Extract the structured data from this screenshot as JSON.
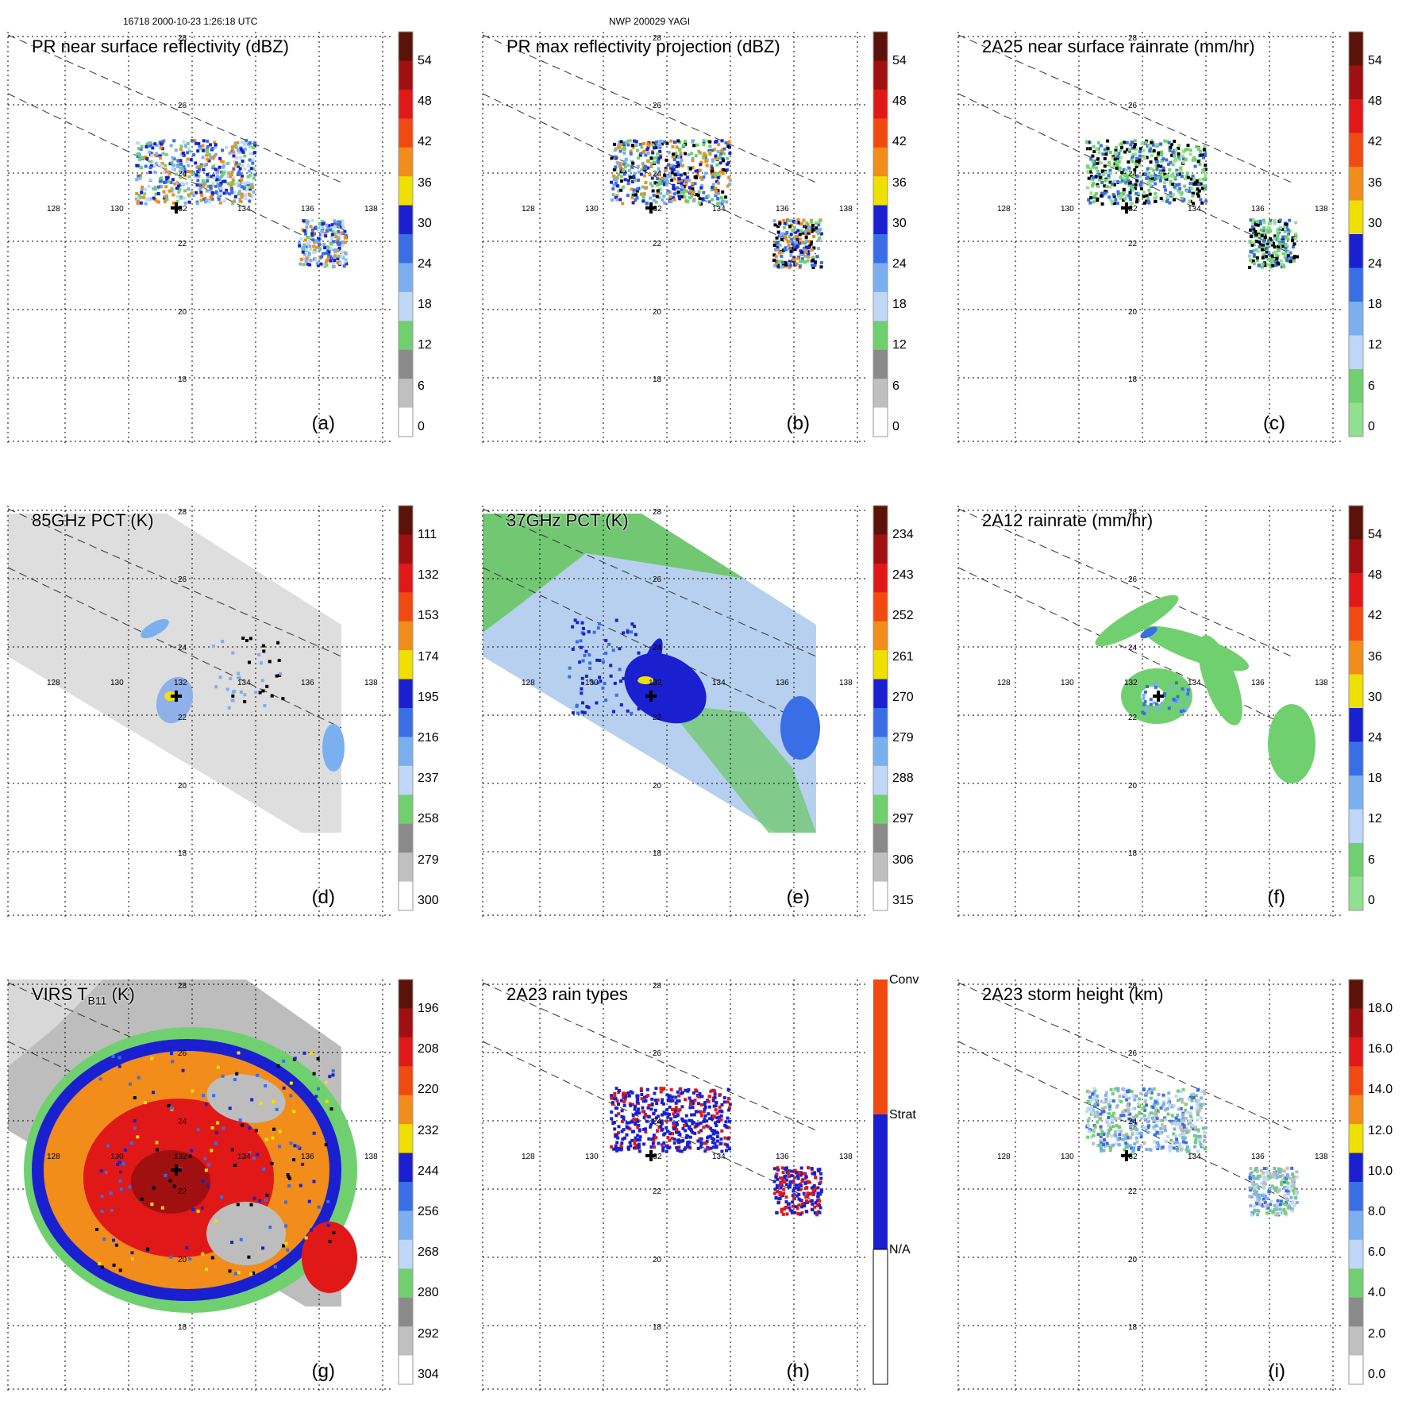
{
  "header": {
    "left": "16718 2000-10-23 1:26:18 UTC",
    "center": "NWP 200029 YAGI"
  },
  "lat_labels": [
    "28",
    "26",
    "24",
    "22",
    "20",
    "18"
  ],
  "lon_labels": [
    "128",
    "130",
    "132",
    "134",
    "136",
    "138"
  ],
  "panels": [
    {
      "id": "a",
      "title": "PR near surface reflectivity (dBZ)",
      "label": "(a)",
      "kind": "pr",
      "colorbar": [
        "54",
        "48",
        "42",
        "36",
        "30",
        "24",
        "18",
        "12",
        "6",
        "0"
      ]
    },
    {
      "id": "b",
      "title": "PR max reflectivity projection (dBZ)",
      "label": "(b)",
      "kind": "pr",
      "colorbar": [
        "54",
        "48",
        "42",
        "36",
        "30",
        "24",
        "18",
        "12",
        "6",
        "0"
      ]
    },
    {
      "id": "c",
      "title": "2A25 near surface rainrate (mm/hr)",
      "label": "(c)",
      "kind": "pr",
      "colorbar": [
        "54",
        "48",
        "42",
        "36",
        "30",
        "24",
        "18",
        "12",
        "6",
        "0"
      ]
    },
    {
      "id": "d",
      "title": "85GHz PCT (K)",
      "label": "(d)",
      "kind": "tmi85",
      "colorbar": [
        "111",
        "132",
        "153",
        "174",
        "195",
        "216",
        "237",
        "258",
        "279",
        "300"
      ]
    },
    {
      "id": "e",
      "title": "37GHz PCT (K)",
      "label": "(e)",
      "kind": "tmi37",
      "colorbar": [
        "234",
        "243",
        "252",
        "261",
        "270",
        "279",
        "288",
        "297",
        "306",
        "315"
      ]
    },
    {
      "id": "f",
      "title": "2A12 rainrate (mm/hr)",
      "label": "(f)",
      "kind": "tmirain",
      "colorbar": [
        "54",
        "48",
        "42",
        "36",
        "30",
        "24",
        "18",
        "12",
        "6",
        "0"
      ]
    },
    {
      "id": "g",
      "title_main": "VIRS T",
      "title_sub": "B11",
      "title_unit": " (K)",
      "label": "(g)",
      "kind": "virs",
      "colorbar": [
        "196",
        "208",
        "220",
        "232",
        "244",
        "256",
        "268",
        "280",
        "292",
        "304"
      ]
    },
    {
      "id": "h",
      "title": "2A23 rain types",
      "label": "(h)",
      "kind": "types",
      "colorbar": [
        "Conv",
        "Strat",
        "N/A"
      ]
    },
    {
      "id": "i",
      "title": "2A23 storm height (km)",
      "label": "(i)",
      "kind": "pr",
      "colorbar": [
        "18.0",
        "16.0",
        "14.0",
        "12.0",
        "10.0",
        "8.0",
        "6.0",
        "4.0",
        "2.0",
        "0.0"
      ]
    }
  ]
}
